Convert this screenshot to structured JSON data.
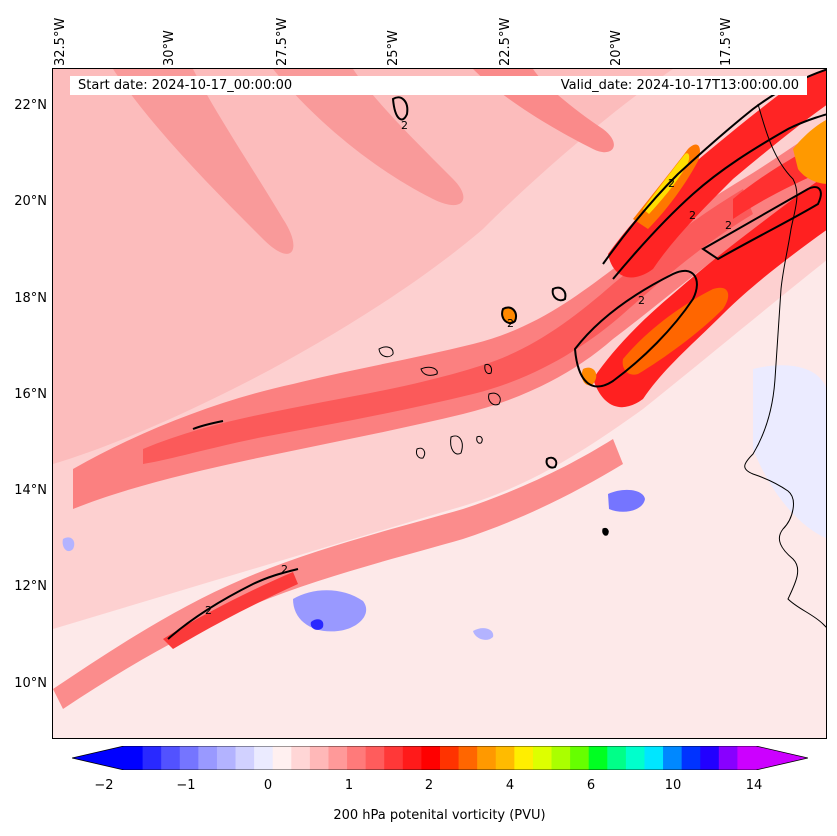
{
  "map": {
    "start_date_label": "Start date: 2024-10-17_00:00:00",
    "valid_date_label": "Valid_date: 2024-10-17T13:00:00.00",
    "lon_labels": [
      "32.5°W",
      "30°W",
      "27.5°W",
      "25°W",
      "22.5°W",
      "20°W",
      "17.5°W"
    ],
    "lat_labels": [
      "22°N",
      "20°N",
      "18°N",
      "16°N",
      "14°N",
      "12°N",
      "10°N"
    ],
    "contour_label": "2",
    "contour_labels": [
      "2",
      "2",
      "2",
      "2",
      "2",
      "2",
      "2",
      "2"
    ]
  },
  "colorbar": {
    "title": "200 hPa potenital vorticity (PVU)",
    "tick_labels": [
      "−2",
      "−1",
      "0",
      "1",
      "2",
      "4",
      "6",
      "10",
      "14"
    ],
    "colors": [
      "#0000ff",
      "#2929ff",
      "#5252ff",
      "#7575ff",
      "#9999ff",
      "#b3b3ff",
      "#d1d1ff",
      "#ebebff",
      "#fff0f0",
      "#ffd6d6",
      "#ffb8b8",
      "#ff9999",
      "#ff7a7a",
      "#ff5c5c",
      "#ff3838",
      "#ff1a1a",
      "#ff0000",
      "#ff3300",
      "#ff6600",
      "#ff9900",
      "#ffbb00",
      "#ffee00",
      "#ddff00",
      "#aaff00",
      "#66ff00",
      "#00ff22",
      "#00ff88",
      "#00ffcc",
      "#00e6ff",
      "#0088ff",
      "#0033ff",
      "#2200ff",
      "#8800ff",
      "#cc00ff"
    ],
    "extend_low_color": "#0000ff",
    "extend_high_color": "#cc00ff"
  }
}
